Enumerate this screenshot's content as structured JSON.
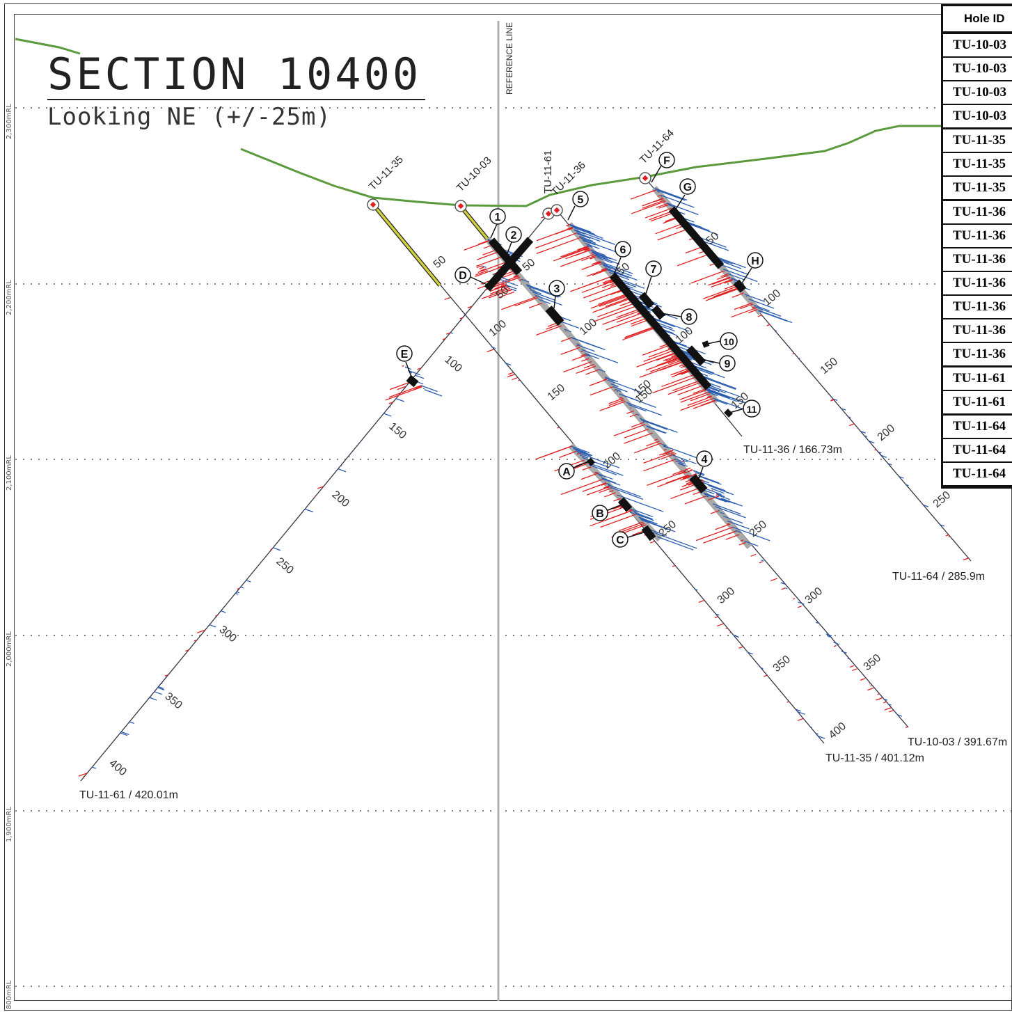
{
  "title": "SECTION 10400",
  "subtitle": "Looking NE (+/-25m)",
  "reference_line_label": "REFERENCE LINE",
  "rl_labels": [
    "2,300mRL",
    "2,200mRL",
    "2,100mRL",
    "2,000mRL",
    "1,900mRL",
    "800mRL"
  ],
  "hole_labels": [
    "TU-11-35",
    "TU-10-03",
    "TU-11-61",
    "TU-11-36",
    "TU-11-64"
  ],
  "end_of_hole": [
    "TU-11-36 / 166.73m",
    "TU-11-64 / 285.9m",
    "TU-10-03 / 391.67m",
    "TU-11-35 / 401.12m",
    "TU-11-61 / 420.01m"
  ],
  "depth_ticks": [
    "50",
    "100",
    "150",
    "200",
    "250",
    "300",
    "350",
    "400"
  ],
  "callouts": [
    "1",
    "2",
    "3",
    "4",
    "5",
    "6",
    "7",
    "8",
    "9",
    "10",
    "11",
    "A",
    "B",
    "C",
    "D",
    "E",
    "F",
    "G",
    "H"
  ],
  "table": {
    "header": "Hole ID",
    "rows": [
      "TU-10-03",
      "TU-10-03",
      "TU-10-03",
      "TU-10-03",
      "TU-11-35",
      "TU-11-35",
      "TU-11-35",
      "TU-11-36",
      "TU-11-36",
      "TU-11-36",
      "TU-11-36",
      "TU-11-36",
      "TU-11-36",
      "TU-11-36",
      "TU-11-61",
      "TU-11-61",
      "TU-11-64",
      "TU-11-64",
      "TU-11-64"
    ]
  },
  "colors": {
    "topography": "#5b9a3c",
    "assay_high": "#e02020",
    "assay_low": "#2a5db0",
    "intercept": "#111111",
    "trace_grey": "#a8a8a8",
    "precollar": "#c8c840"
  }
}
